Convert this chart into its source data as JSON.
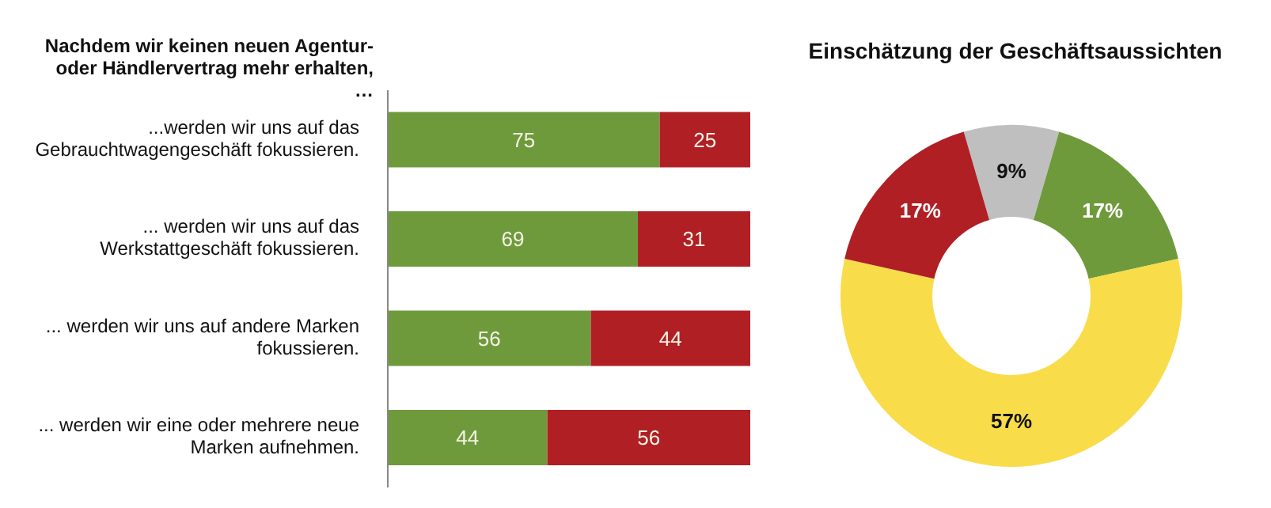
{
  "chart_data": [
    {
      "type": "bar",
      "orientation": "horizontal",
      "stacked": true,
      "data_labels": true,
      "title": "Nachdem wir keinen neuen Agentur- oder Händlervertrag mehr erhalten, …",
      "categories": [
        "...werden wir uns auf das Gebrauchtwagengeschäft fokussieren.",
        "... werden wir uns auf das Werkstattgeschäft fokussieren.",
        "... werden wir uns auf andere Marken fokussieren.",
        "... werden wir eine oder mehrere neue Marken aufnehmen."
      ],
      "series": [
        {
          "color": "#6f9a3c",
          "values": [
            75,
            69,
            56,
            44
          ]
        },
        {
          "color": "#b01f24",
          "values": [
            25,
            31,
            44,
            56
          ]
        }
      ]
    },
    {
      "type": "donut",
      "title": "Einschätzung der Geschäftsaussichten",
      "categories": [
        null,
        null,
        null,
        null
      ],
      "values": [
        9,
        17,
        57,
        17
      ],
      "colors": [
        "#bfbfbf",
        "#6f9a3c",
        "#f9dc4a",
        "#b01f24"
      ],
      "value_labels": [
        "9%",
        "17%",
        "57%",
        "17%"
      ]
    }
  ]
}
